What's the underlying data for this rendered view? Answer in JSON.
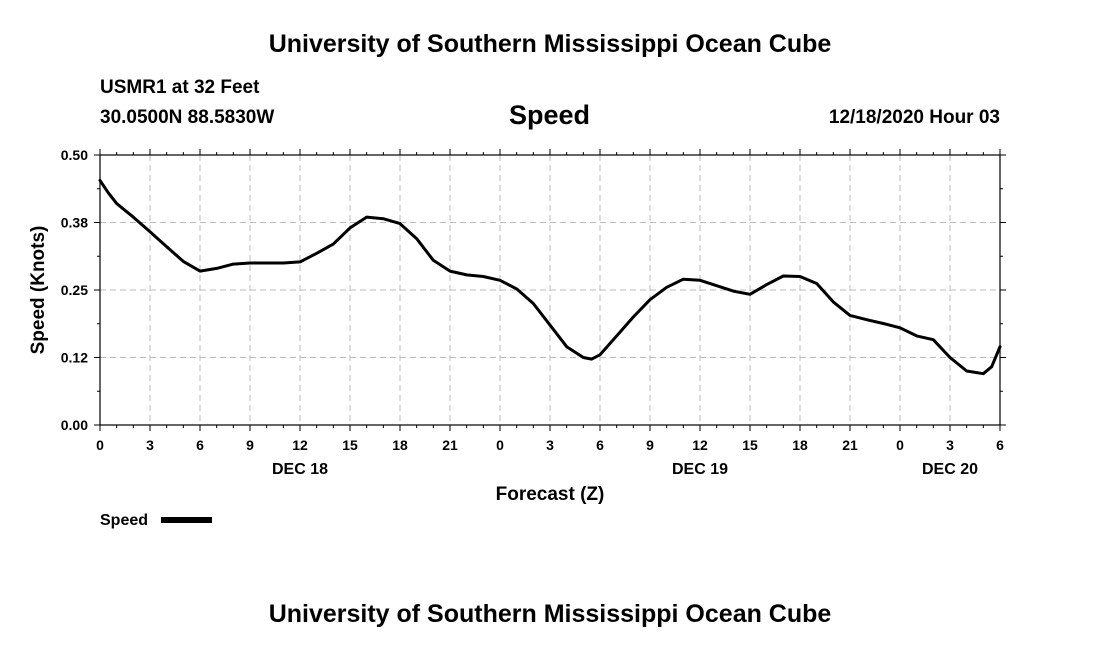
{
  "page": {
    "top_title": "University of Southern Mississippi Ocean Cube",
    "bottom_title": "University of Southern Mississippi Ocean Cube",
    "station": "USMR1 at 32 Feet",
    "coords": "30.0500N 88.5830W",
    "datetime": "12/18/2020 Hour 03"
  },
  "chart_data": {
    "type": "line",
    "title": "Speed",
    "ylabel": "Speed (Knots)",
    "xlabel": "Forecast (Z)",
    "ylim": [
      0,
      0.5
    ],
    "xlim": [
      0,
      54
    ],
    "y_ticks": [
      0.0,
      0.125,
      0.25,
      0.375,
      0.5
    ],
    "y_tick_labels": [
      "0.00",
      "0.12",
      "0.25",
      "0.38",
      "0.50"
    ],
    "x_ticks": [
      0,
      3,
      6,
      9,
      12,
      15,
      18,
      21,
      24,
      27,
      30,
      33,
      36,
      39,
      42,
      45,
      48,
      51,
      54
    ],
    "x_tick_labels": [
      "0",
      "3",
      "6",
      "9",
      "12",
      "15",
      "18",
      "21",
      "0",
      "3",
      "6",
      "9",
      "12",
      "15",
      "18",
      "21",
      "0",
      "3",
      "6"
    ],
    "date_labels": [
      {
        "x": 12,
        "label": "DEC 18"
      },
      {
        "x": 36,
        "label": "DEC 19"
      },
      {
        "x": 51,
        "label": "DEC 20"
      }
    ],
    "grid": true,
    "legend": {
      "position": "bottom-left",
      "label": "Speed"
    },
    "series": [
      {
        "name": "Speed",
        "color": "#000000",
        "x": [
          0,
          0.5,
          1,
          2,
          3,
          4,
          5,
          6,
          7,
          8,
          9,
          10,
          11,
          12,
          13,
          14,
          15,
          16,
          17,
          18,
          19,
          20,
          21,
          22,
          23,
          24,
          25,
          26,
          27,
          28,
          29,
          29.5,
          30,
          31,
          32,
          33,
          34,
          35,
          36,
          37,
          38,
          39,
          40,
          41,
          42,
          43,
          44,
          45,
          46,
          47,
          48,
          49,
          50,
          51,
          52,
          53,
          53.5,
          54
        ],
        "values": [
          0.453,
          0.43,
          0.41,
          0.385,
          0.358,
          0.33,
          0.303,
          0.285,
          0.29,
          0.298,
          0.3,
          0.3,
          0.3,
          0.302,
          0.318,
          0.335,
          0.365,
          0.385,
          0.382,
          0.373,
          0.345,
          0.305,
          0.285,
          0.278,
          0.275,
          0.268,
          0.252,
          0.225,
          0.185,
          0.145,
          0.125,
          0.122,
          0.13,
          0.165,
          0.2,
          0.232,
          0.255,
          0.27,
          0.268,
          0.258,
          0.248,
          0.242,
          0.26,
          0.276,
          0.275,
          0.262,
          0.228,
          0.203,
          0.195,
          0.188,
          0.18,
          0.165,
          0.158,
          0.125,
          0.1,
          0.095,
          0.108,
          0.145
        ]
      }
    ]
  }
}
